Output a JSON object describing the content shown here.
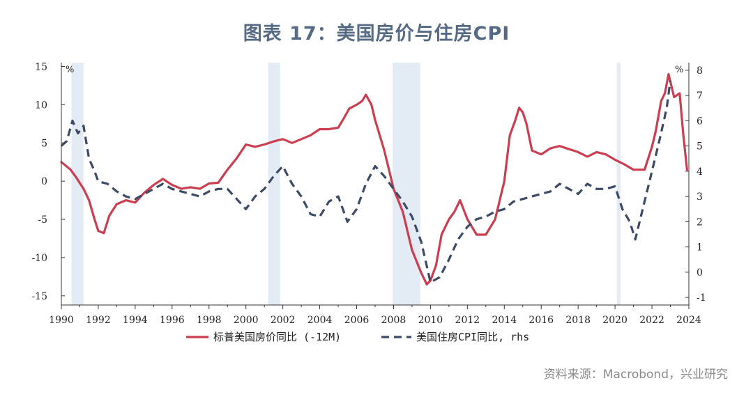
{
  "title": "图表 17：美国房价与住房CPI",
  "source": "资料来源：Macrobond，兴业研究",
  "colors": {
    "hpi": "#cc3d50",
    "cpi": "#3b4a66",
    "recession": "#e3ebf5",
    "title": "#556a85"
  },
  "chart_data": {
    "type": "line",
    "title": "图表 17：美国房价与住房CPI",
    "xlabel": "",
    "ylabel": "%",
    "y2label": "%",
    "xlim": [
      1990,
      2024
    ],
    "ylim": [
      -16.2,
      15.5
    ],
    "y2lim": [
      -1.3,
      8.3
    ],
    "x_ticks": [
      "1990",
      "1992",
      "1994",
      "1996",
      "1998",
      "2000",
      "2002",
      "2004",
      "2006",
      "2008",
      "2010",
      "2012",
      "2014",
      "2016",
      "2018",
      "2020",
      "2022",
      "2024"
    ],
    "y_ticks": [
      "15",
      "10",
      "5",
      "0",
      "-5",
      "-10",
      "-15"
    ],
    "y2_ticks": [
      "8",
      "7",
      "6",
      "5",
      "4",
      "3",
      "2",
      "1",
      "0",
      "-1"
    ],
    "grid": false,
    "legend_position": "bottom",
    "recessions": [
      [
        1990.55,
        1991.2
      ],
      [
        2001.2,
        2001.85
      ],
      [
        2007.95,
        2009.45
      ],
      [
        2020.1,
        2020.3
      ]
    ],
    "series": [
      {
        "name": "标普美国房价同比 (-12M)",
        "axis": "left",
        "style": "solid",
        "x": [
          1990.0,
          1990.5,
          1990.8,
          1991.2,
          1991.5,
          1991.8,
          1992.0,
          1992.3,
          1992.6,
          1993.0,
          1993.5,
          1994.0,
          1994.5,
          1995.0,
          1995.5,
          1996.0,
          1996.5,
          1997.0,
          1997.5,
          1998.0,
          1998.5,
          1999.0,
          1999.5,
          2000.0,
          2000.5,
          2001.0,
          2001.5,
          2002.0,
          2002.5,
          2003.0,
          2003.5,
          2004.0,
          2004.5,
          2005.0,
          2005.3,
          2005.6,
          2006.0,
          2006.3,
          2006.5,
          2006.8,
          2007.0,
          2007.5,
          2008.0,
          2008.5,
          2009.0,
          2009.5,
          2009.8,
          2010.0,
          2010.3,
          2010.6,
          2011.0,
          2011.3,
          2011.6,
          2012.0,
          2012.5,
          2013.0,
          2013.5,
          2014.0,
          2014.3,
          2014.6,
          2014.8,
          2015.0,
          2015.2,
          2015.5,
          2016.0,
          2016.5,
          2017.0,
          2017.5,
          2018.0,
          2018.5,
          2019.0,
          2019.5,
          2020.0,
          2020.5,
          2021.0,
          2021.3,
          2021.6,
          2022.0,
          2022.2,
          2022.5,
          2022.7,
          2022.9,
          2023.2,
          2023.5,
          2023.7,
          2023.9
        ],
        "values": [
          2.5,
          1.5,
          0.5,
          -1.0,
          -2.5,
          -5.0,
          -6.5,
          -6.8,
          -4.5,
          -3.0,
          -2.5,
          -2.8,
          -1.5,
          -0.5,
          0.3,
          -0.5,
          -1.0,
          -0.8,
          -1.0,
          -0.3,
          -0.2,
          1.5,
          3.0,
          4.8,
          4.5,
          4.8,
          5.2,
          5.5,
          5.0,
          5.5,
          6.0,
          6.8,
          6.8,
          7.0,
          8.2,
          9.5,
          10.0,
          10.5,
          11.3,
          10.0,
          8.0,
          4.0,
          -1.0,
          -4.0,
          -9.0,
          -12.0,
          -13.5,
          -13.0,
          -11.0,
          -7.0,
          -5.0,
          -4.0,
          -2.5,
          -5.0,
          -7.0,
          -7.0,
          -5.0,
          0.0,
          6.0,
          8.0,
          9.6,
          9.0,
          7.5,
          4.0,
          3.5,
          4.3,
          4.6,
          4.2,
          3.8,
          3.2,
          3.8,
          3.5,
          2.8,
          2.2,
          1.5,
          1.5,
          1.5,
          4.5,
          6.5,
          10.5,
          11.5,
          14.0,
          11.0,
          11.5,
          6.0,
          1.5
        ]
      },
      {
        "name": "美国住房CPI同比, rhs",
        "axis": "right",
        "style": "dashed",
        "x": [
          1990.0,
          1990.3,
          1990.6,
          1990.9,
          1991.2,
          1991.5,
          1991.8,
          1992.0,
          1992.5,
          1993.0,
          1993.5,
          1994.0,
          1994.5,
          1995.0,
          1995.5,
          1996.0,
          1996.5,
          1997.0,
          1997.5,
          1998.0,
          1998.5,
          1999.0,
          1999.5,
          2000.0,
          2000.5,
          2001.0,
          2001.5,
          2002.0,
          2002.5,
          2003.0,
          2003.5,
          2004.0,
          2004.5,
          2005.0,
          2005.5,
          2006.0,
          2006.5,
          2007.0,
          2007.5,
          2008.0,
          2008.5,
          2009.0,
          2009.5,
          2010.0,
          2010.5,
          2011.0,
          2011.5,
          2012.0,
          2012.5,
          2013.0,
          2013.5,
          2014.0,
          2014.5,
          2015.0,
          2015.5,
          2016.0,
          2016.5,
          2017.0,
          2017.5,
          2018.0,
          2018.5,
          2019.0,
          2019.5,
          2020.0,
          2020.4,
          2020.8,
          2021.1,
          2021.5,
          2022.0,
          2022.4,
          2022.8,
          2023.0
        ],
        "values": [
          5.0,
          5.2,
          6.0,
          5.5,
          5.8,
          4.5,
          4.0,
          3.6,
          3.5,
          3.2,
          3.0,
          2.9,
          3.1,
          3.3,
          3.5,
          3.3,
          3.2,
          3.1,
          3.0,
          3.2,
          3.3,
          3.3,
          2.9,
          2.5,
          3.0,
          3.3,
          3.8,
          4.2,
          3.5,
          3.0,
          2.3,
          2.2,
          2.8,
          3.0,
          2.0,
          2.5,
          3.5,
          4.2,
          3.8,
          3.3,
          2.8,
          2.2,
          1.2,
          -0.4,
          -0.2,
          0.5,
          1.3,
          1.8,
          2.1,
          2.2,
          2.4,
          2.5,
          2.8,
          2.9,
          3.0,
          3.1,
          3.2,
          3.5,
          3.3,
          3.1,
          3.5,
          3.3,
          3.3,
          3.4,
          2.5,
          2.0,
          1.3,
          2.5,
          4.0,
          5.2,
          6.5,
          7.6
        ]
      }
    ]
  }
}
